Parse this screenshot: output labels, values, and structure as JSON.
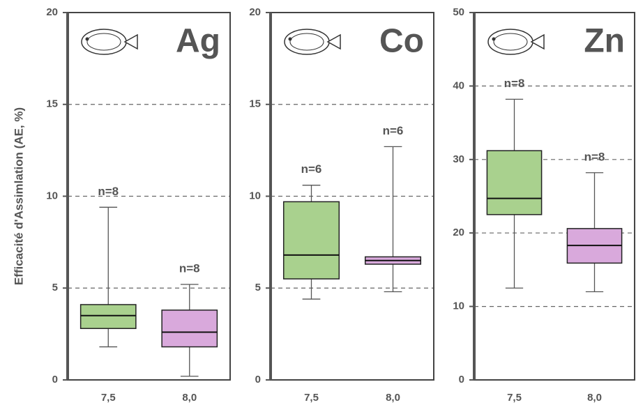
{
  "chart_data": [
    {
      "type": "box",
      "title": "Ag",
      "ylabel": "Efficacité d'Assimlation (AE, %)",
      "categories": [
        "7,5",
        "8,0"
      ],
      "boxes": [
        {
          "whisker_low": 1.8,
          "q1": 2.8,
          "median": 3.5,
          "q3": 4.1,
          "whisker_high": 9.4,
          "color": "#a9d18e",
          "label": "n=8"
        },
        {
          "whisker_low": 0.2,
          "q1": 1.8,
          "median": 2.6,
          "q3": 3.8,
          "whisker_high": 5.2,
          "color": "#d9a9dc",
          "label": "n=8"
        }
      ],
      "ylim": [
        0,
        20
      ],
      "yticks": [
        0,
        5,
        10,
        15,
        20
      ],
      "grid": true
    },
    {
      "type": "box",
      "title": "Co",
      "categories": [
        "7,5",
        "8,0"
      ],
      "boxes": [
        {
          "whisker_low": 4.4,
          "q1": 5.5,
          "median": 6.8,
          "q3": 9.7,
          "whisker_high": 10.6,
          "color": "#a9d18e",
          "label": "n=6"
        },
        {
          "whisker_low": 4.8,
          "q1": 6.3,
          "median": 6.5,
          "q3": 6.7,
          "whisker_high": 12.7,
          "color": "#d9a9dc",
          "label": "n=6"
        }
      ],
      "ylim": [
        0,
        20
      ],
      "yticks": [
        0,
        5,
        10,
        15,
        20
      ],
      "grid": true
    },
    {
      "type": "box",
      "title": "Zn",
      "categories": [
        "7,5",
        "8,0"
      ],
      "boxes": [
        {
          "whisker_low": 12.5,
          "q1": 22.5,
          "median": 24.7,
          "q3": 31.2,
          "whisker_high": 38.2,
          "color": "#a9d18e",
          "label": "n=8"
        },
        {
          "whisker_low": 12,
          "q1": 15.9,
          "median": 18.3,
          "q3": 20.6,
          "whisker_high": 28.2,
          "color": "#d9a9dc",
          "label": "n=8"
        }
      ],
      "ylim": [
        0,
        50
      ],
      "yticks": [
        0,
        10,
        20,
        30,
        40,
        50
      ],
      "grid": true
    }
  ]
}
